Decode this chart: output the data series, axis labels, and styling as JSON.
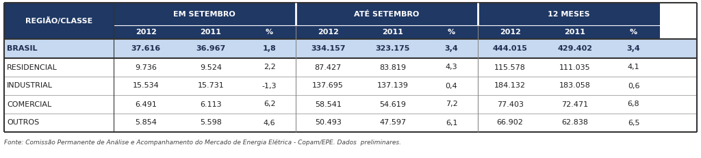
{
  "title_col": "REGIÃO/CLASSE",
  "group_headers": [
    "EM SETEMBRO",
    "ATÉ SETEMBRO",
    "12 MESES"
  ],
  "sub_headers": [
    "2012",
    "2011",
    "%",
    "2012",
    "2011",
    "%",
    "2012",
    "2011",
    "%"
  ],
  "rows": [
    {
      "label": "BRASIL",
      "values": [
        "37.616",
        "36.967",
        "1,8",
        "334.157",
        "323.175",
        "3,4",
        "444.015",
        "429.402",
        "3,4"
      ],
      "highlight": true
    },
    {
      "label": "RESIDENCIAL",
      "values": [
        "9.736",
        "9.524",
        "2,2",
        "87.427",
        "83.819",
        "4,3",
        "115.578",
        "111.035",
        "4,1"
      ],
      "highlight": false
    },
    {
      "label": "INDUSTRIAL",
      "values": [
        "15.534",
        "15.731",
        "-1,3",
        "137.695",
        "137.139",
        "0,4",
        "184.132",
        "183.058",
        "0,6"
      ],
      "highlight": false
    },
    {
      "label": "COMERCIAL",
      "values": [
        "6.491",
        "6.113",
        "6,2",
        "58.541",
        "54.619",
        "7,2",
        "77.403",
        "72.471",
        "6,8"
      ],
      "highlight": false
    },
    {
      "label": "OUTROS",
      "values": [
        "5.854",
        "5.598",
        "4,6",
        "50.493",
        "47.597",
        "6,1",
        "66.902",
        "62.838",
        "6,5"
      ],
      "highlight": false
    }
  ],
  "footer": "Fonte: Comissão Permanente de Análise e Acompanhamento do Mercado de Energia Elétrica - Copam/EPE. Dados  preliminares.",
  "header_bg": "#1F3864",
  "header_fg": "#FFFFFF",
  "highlight_bg": "#C6D9F0",
  "highlight_fg": "#1F2D50",
  "normal_bg": "#FFFFFF",
  "normal_fg": "#1F1F1F",
  "footer_fg": "#444444",
  "col_props": [
    0.158,
    0.0936,
    0.0936,
    0.0756,
    0.0936,
    0.0936,
    0.0756,
    0.0936,
    0.0936,
    0.0756
  ]
}
